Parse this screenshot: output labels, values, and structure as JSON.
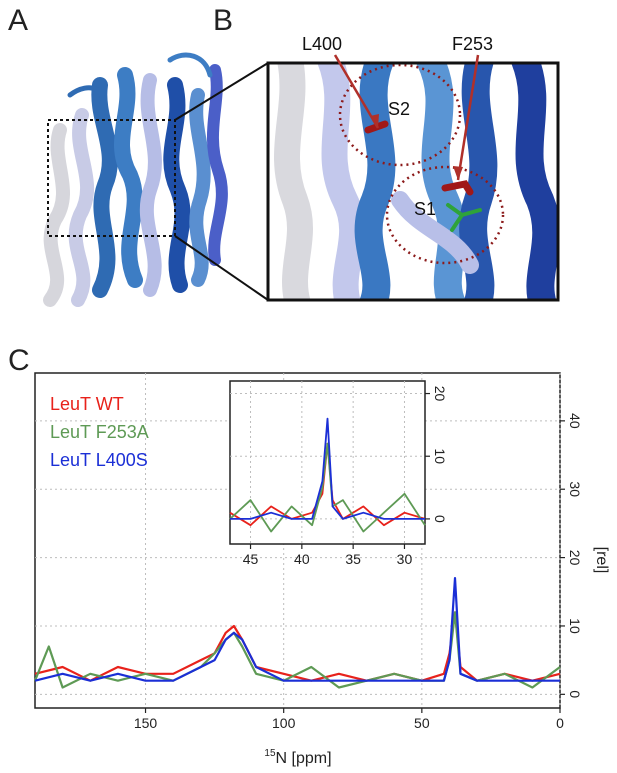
{
  "panels": {
    "a": "A",
    "b": "B",
    "c": "C"
  },
  "structure_labels": {
    "l400": "L400",
    "f253": "F253",
    "s1": "S1",
    "s2": "S2"
  },
  "colors": {
    "wt": "#e8221b",
    "f253a": "#5e9a55",
    "l400s": "#1b2fd6",
    "arrow": "#b0302a",
    "pocket": "#8c1b1b"
  },
  "chart_data": [
    {
      "type": "line",
      "xlabel": "15N [ppm]",
      "xlabel_sup": "15",
      "xlabel_rest": "N [ppm]",
      "ylabel": "[rel]",
      "xlim": [
        190,
        0
      ],
      "ylim": [
        -2,
        47
      ],
      "xticks": [
        150,
        100,
        50,
        0
      ],
      "yticks": [
        0,
        10,
        20,
        30,
        40
      ],
      "grid": true,
      "legend_position": "top-left",
      "series": [
        {
          "name": "LeuT WT",
          "color": "#e8221b",
          "x": [
            190,
            180,
            170,
            160,
            150,
            140,
            130,
            125,
            121,
            118,
            115,
            110,
            100,
            90,
            80,
            70,
            60,
            50,
            42,
            40,
            38,
            36,
            30,
            20,
            10,
            0
          ],
          "y": [
            3,
            4,
            2,
            4,
            3,
            3,
            5,
            6,
            9,
            10,
            8,
            4,
            3,
            2,
            3,
            2,
            3,
            2,
            3,
            6,
            12,
            4,
            2,
            3,
            2,
            3
          ]
        },
        {
          "name": "LeuT F253A",
          "color": "#5e9a55",
          "x": [
            190,
            185,
            180,
            170,
            160,
            150,
            140,
            130,
            125,
            121,
            118,
            115,
            110,
            100,
            90,
            80,
            70,
            60,
            50,
            42,
            40,
            38,
            36,
            30,
            20,
            10,
            0
          ],
          "y": [
            2,
            7,
            1,
            3,
            2,
            3,
            2,
            4,
            6,
            8,
            9,
            7,
            3,
            2,
            4,
            1,
            2,
            3,
            2,
            2,
            5,
            12,
            3,
            2,
            3,
            1,
            4
          ]
        },
        {
          "name": "LeuT L400S",
          "color": "#1b2fd6",
          "x": [
            190,
            180,
            170,
            160,
            150,
            140,
            130,
            125,
            121,
            118,
            115,
            110,
            100,
            90,
            80,
            70,
            60,
            50,
            42,
            40,
            38,
            36,
            30,
            20,
            10,
            0
          ],
          "y": [
            2,
            3,
            2,
            3,
            2,
            2,
            4,
            5,
            8,
            9,
            8,
            4,
            2,
            2,
            2,
            2,
            2,
            2,
            2,
            5,
            17,
            3,
            2,
            2,
            2,
            2
          ]
        }
      ]
    },
    {
      "type": "line",
      "inset": true,
      "xlim": [
        47,
        28
      ],
      "ylim": [
        -4,
        22
      ],
      "xticks": [
        45,
        40,
        35,
        30
      ],
      "yticks": [
        0,
        10,
        20
      ],
      "grid": true,
      "series": [
        {
          "name": "LeuT WT",
          "color": "#e8221b",
          "x": [
            47,
            45,
            43,
            41,
            39,
            38,
            37.5,
            37,
            36,
            34,
            32,
            30,
            28
          ],
          "y": [
            1,
            -1,
            2,
            0,
            1,
            4,
            12,
            3,
            0,
            2,
            -1,
            1,
            0
          ]
        },
        {
          "name": "LeuT F253A",
          "color": "#5e9a55",
          "x": [
            47,
            45,
            43,
            41,
            39,
            38,
            37.5,
            37,
            36,
            34,
            32,
            30,
            28
          ],
          "y": [
            0,
            3,
            -2,
            2,
            -1,
            5,
            12,
            2,
            3,
            -2,
            1,
            4,
            -1
          ]
        },
        {
          "name": "LeuT L400S",
          "color": "#1b2fd6",
          "x": [
            47,
            45,
            43,
            41,
            39,
            38,
            37.5,
            37,
            36,
            34,
            32,
            30,
            28
          ],
          "y": [
            0,
            0,
            1,
            0,
            0,
            6,
            16,
            2,
            0,
            1,
            0,
            0,
            0
          ]
        }
      ]
    }
  ]
}
